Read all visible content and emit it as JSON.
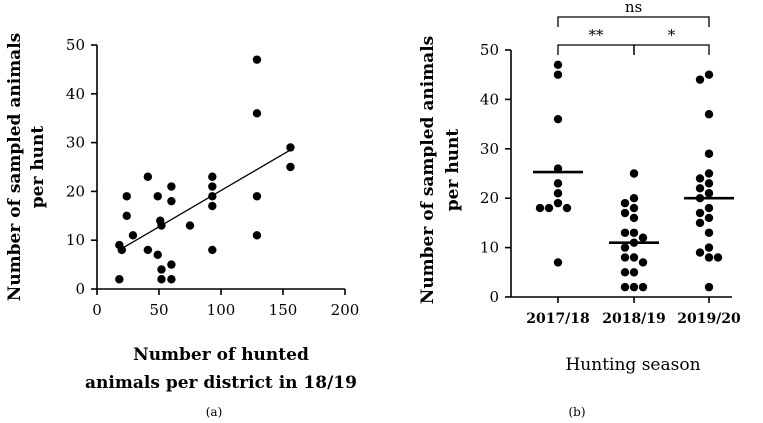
{
  "chart_data": [
    {
      "type": "scatter",
      "panel_label": "(a)",
      "xlabel_lines": [
        "Number of hunted",
        "animals per district in 18/19"
      ],
      "ylabel_lines": [
        "Number of sampled animals",
        "per hunt"
      ],
      "xlim": [
        0,
        200
      ],
      "ylim": [
        0,
        50
      ],
      "xticks": [
        0,
        50,
        100,
        150,
        200
      ],
      "yticks": [
        0,
        10,
        20,
        30,
        40,
        50
      ],
      "points": [
        {
          "x": 18,
          "y": 2
        },
        {
          "x": 18,
          "y": 9
        },
        {
          "x": 20,
          "y": 8
        },
        {
          "x": 24,
          "y": 15
        },
        {
          "x": 24,
          "y": 19
        },
        {
          "x": 29,
          "y": 11
        },
        {
          "x": 41,
          "y": 8
        },
        {
          "x": 41,
          "y": 23
        },
        {
          "x": 49,
          "y": 7
        },
        {
          "x": 49,
          "y": 19
        },
        {
          "x": 51,
          "y": 14
        },
        {
          "x": 52,
          "y": 13
        },
        {
          "x": 52,
          "y": 4
        },
        {
          "x": 52,
          "y": 2
        },
        {
          "x": 60,
          "y": 21
        },
        {
          "x": 60,
          "y": 18
        },
        {
          "x": 60,
          "y": 5
        },
        {
          "x": 60,
          "y": 2
        },
        {
          "x": 75,
          "y": 13
        },
        {
          "x": 93,
          "y": 23
        },
        {
          "x": 93,
          "y": 21
        },
        {
          "x": 93,
          "y": 19
        },
        {
          "x": 93,
          "y": 17
        },
        {
          "x": 93,
          "y": 8
        },
        {
          "x": 129,
          "y": 47
        },
        {
          "x": 129,
          "y": 36
        },
        {
          "x": 129,
          "y": 19
        },
        {
          "x": 129,
          "y": 11
        },
        {
          "x": 156,
          "y": 29
        },
        {
          "x": 156,
          "y": 25
        }
      ],
      "regression_line": {
        "x": [
          18,
          156
        ],
        "y": [
          8.0,
          28.5
        ]
      }
    },
    {
      "type": "scatter",
      "panel_label": "(b)",
      "xlabel": "Hunting season",
      "ylabel_lines": [
        "Number of sampled animals",
        "per hunt"
      ],
      "categories": [
        "2017/18",
        "2018/19",
        "2019/20"
      ],
      "ylim": [
        0,
        50
      ],
      "yticks": [
        0,
        10,
        20,
        30,
        40,
        50
      ],
      "groups": [
        {
          "category": "2017/18",
          "mean": 25.3,
          "values": [
            47,
            45,
            36,
            26,
            23,
            21,
            19,
            18,
            18,
            18,
            7
          ]
        },
        {
          "category": "2018/19",
          "mean": 11,
          "values": [
            25,
            20,
            19,
            18,
            17,
            16,
            13,
            13,
            12,
            11,
            10,
            8,
            8,
            7,
            5,
            5,
            2,
            2,
            2
          ]
        },
        {
          "category": "2019/20",
          "mean": 20,
          "values": [
            45,
            44,
            37,
            29,
            25,
            24,
            23,
            22,
            21,
            20,
            18,
            17,
            16,
            15,
            13,
            10,
            9,
            8,
            8,
            2
          ]
        }
      ],
      "significance": [
        {
          "from": "2017/18",
          "to": "2019/20",
          "label": "ns"
        },
        {
          "from": "2017/18",
          "to": "2018/19",
          "label": "**"
        },
        {
          "from": "2018/19",
          "to": "2019/20",
          "label": "*"
        }
      ]
    }
  ]
}
